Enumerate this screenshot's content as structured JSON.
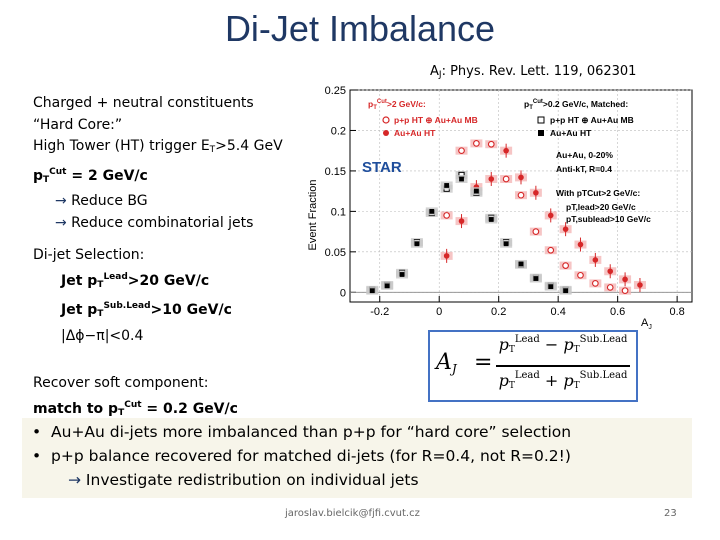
{
  "slide": {
    "title": "Di-Jet Imbalance",
    "ref_prefix": "A",
    "ref_sub": "J",
    "ref_rest": ": Phys. Rev. Lett. 119, 062301",
    "constituents": "Charged + neutral constituents",
    "hard_core": "“Hard Core:”",
    "ht_trigger_a": " High Tower (HT) trigger E",
    "ht_trigger_sub": "T",
    "ht_trigger_b": ">5.4 GeV",
    "pt_cut_a": "p",
    "pt_cut_sub": "T",
    "pt_cut_sup": "Cut",
    "pt_cut_b": " = 2 GeV/c",
    "reduce_bg": " Reduce BG",
    "reduce_comb": " Reduce combinatorial jets",
    "dijet_sel": "Di-jet Selection:",
    "jet_lead_a": "Jet p",
    "jet_lead_sub": "T",
    "jet_lead_sup": "Lead",
    "jet_lead_b": ">20 GeV/c",
    "jet_sub_a": "Jet p",
    "jet_sub_sub": "T",
    "jet_sub_sup": "Sub.Lead",
    "jet_sub_b": ">10 GeV/c",
    "dphi": "|Δϕ−π|<0.4",
    "recover": "Recover soft component:",
    "match_a": "match to  p",
    "match_sub": "T",
    "match_sup": "Cut",
    "match_b": " = 0.2 GeV/c",
    "arrow_glyph": "→",
    "bullet_glyph": "•"
  },
  "bullets": [
    "Au+Au di-jets more imbalanced than p+p for “hard core” selection",
    "p+p balance recovered for matched di-jets (for R=0.4, not R=0.2!)",
    " Investigate redistribution on individual jets"
  ],
  "footer": {
    "email": "jaroslav.bielcik@fjfi.cvut.cz",
    "page": "23"
  },
  "formula": {
    "lhs": "A",
    "lhs_sub": "J",
    "equals": "=",
    "p": "p",
    "t": "T",
    "lead": "Lead",
    "sublead": "Sub.Lead",
    "minus": "−",
    "plus": "+"
  },
  "chart_data": {
    "type": "scatter",
    "xlabel": "A",
    "xlabel_sub": "J",
    "ylabel": "Event Fraction",
    "xlim": [
      -0.3,
      0.85
    ],
    "ylim": [
      -0.012,
      0.25
    ],
    "xticks": [
      -0.2,
      0,
      0.2,
      0.4,
      0.6,
      0.8
    ],
    "yticks": [
      0,
      0.05,
      0.1,
      0.15,
      0.2,
      0.25
    ],
    "star_label": "STAR",
    "legend_left": {
      "header_a": "p",
      "header_sub": "T",
      "header_sup": "Cut",
      "header_b": ">2 GeV/c:",
      "entries": [
        {
          "name": "p+p HT ⊕ Au+Au MB",
          "marker": "open-circle",
          "color": "#d62728"
        },
        {
          "name": "Au+Au HT",
          "marker": "filled-circle",
          "color": "#d62728"
        }
      ]
    },
    "legend_right": {
      "header_a": "p",
      "header_sub": "T",
      "header_sup": "Cut",
      "header_b": ">0.2 GeV/c, Matched:",
      "entries": [
        {
          "name": "p+p HT ⊕ Au+Au MB",
          "marker": "open-square",
          "color": "#000000"
        },
        {
          "name": "Au+Au HT",
          "marker": "filled-square",
          "color": "#000000"
        }
      ]
    },
    "info_lines": [
      "Au+Au, 0-20%",
      "Anti-kT, R=0.4",
      "With pTCut>2 GeV/c:",
      "pT,lead>20 GeV/c",
      "pT,sublead>10 GeV/c"
    ],
    "series": [
      {
        "name": "p+p HT ⊕ Au+Au MB",
        "marker": "open-circle",
        "color": "#d62728",
        "x": [
          0.025,
          0.075,
          0.125,
          0.175,
          0.225,
          0.275,
          0.325,
          0.375,
          0.425,
          0.475,
          0.525,
          0.575,
          0.625
        ],
        "y": [
          0.095,
          0.175,
          0.184,
          0.183,
          0.14,
          0.12,
          0.075,
          0.052,
          0.033,
          0.021,
          0.011,
          0.006,
          0.002
        ]
      },
      {
        "name": "Au+Au HT",
        "marker": "filled-circle",
        "color": "#d62728",
        "x": [
          0.025,
          0.075,
          0.125,
          0.175,
          0.225,
          0.275,
          0.325,
          0.375,
          0.425,
          0.475,
          0.525,
          0.575,
          0.625,
          0.675
        ],
        "y": [
          0.045,
          0.088,
          0.13,
          0.14,
          0.175,
          0.142,
          0.123,
          0.095,
          0.078,
          0.059,
          0.04,
          0.026,
          0.016,
          0.009
        ]
      },
      {
        "name": "p+p HT ⊕ Au+Au MB",
        "marker": "open-square",
        "color": "#000000",
        "x": [
          -0.225,
          -0.175,
          -0.125,
          -0.075,
          -0.025,
          0.025,
          0.075,
          0.125,
          0.175,
          0.225,
          0.275,
          0.325,
          0.375,
          0.425
        ],
        "y": [
          0.003,
          0.009,
          0.024,
          0.062,
          0.098,
          0.128,
          0.145,
          0.123,
          0.092,
          0.062,
          0.034,
          0.018,
          0.008,
          0.003
        ]
      },
      {
        "name": "Au+Au HT",
        "marker": "filled-square",
        "color": "#000000",
        "x": [
          -0.225,
          -0.175,
          -0.125,
          -0.075,
          -0.025,
          0.025,
          0.075,
          0.125,
          0.175,
          0.225,
          0.275,
          0.325,
          0.375,
          0.425
        ],
        "y": [
          0.002,
          0.008,
          0.022,
          0.06,
          0.1,
          0.132,
          0.14,
          0.125,
          0.09,
          0.06,
          0.035,
          0.017,
          0.007,
          0.002
        ]
      }
    ]
  }
}
